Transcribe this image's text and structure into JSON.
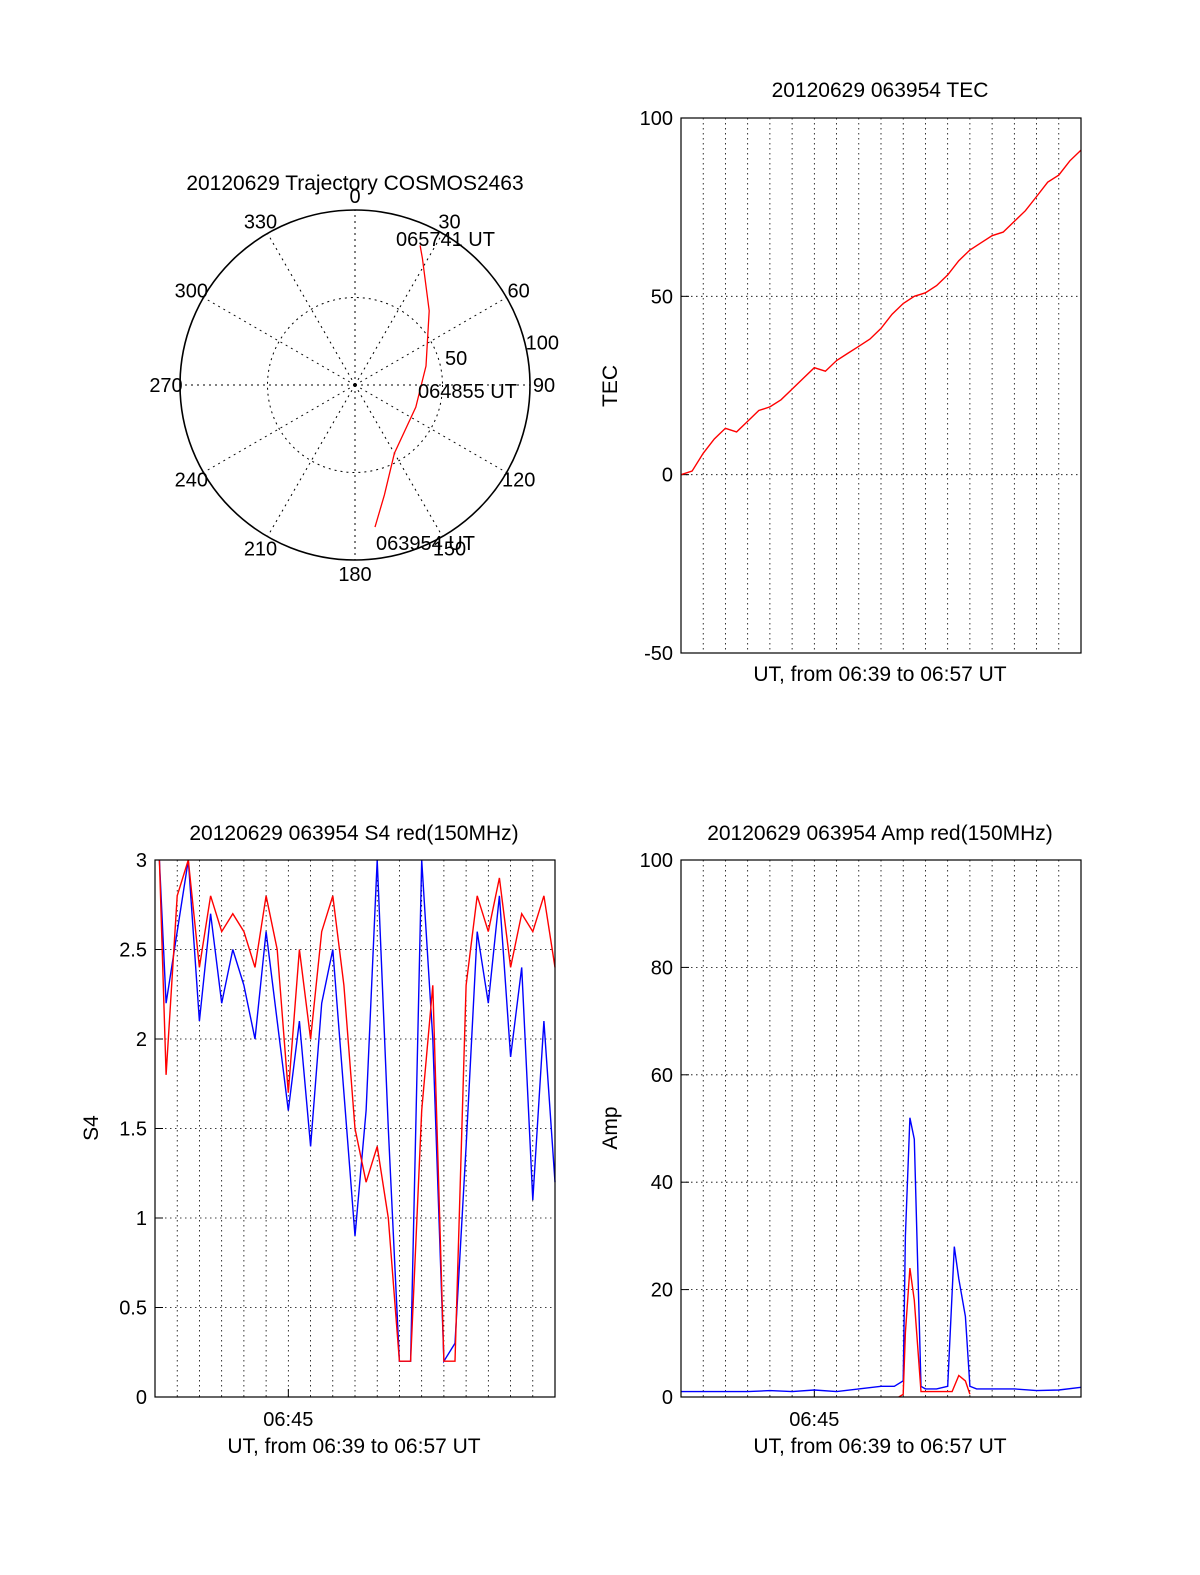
{
  "chart_data": [
    {
      "type": "polar",
      "title": "20120629 Trajectory COSMOS2463",
      "angle_labels": [
        "0",
        "30",
        "60",
        "90",
        "120",
        "150",
        "180",
        "210",
        "240",
        "270",
        "300",
        "330"
      ],
      "radius_labels": [
        "50",
        "100"
      ],
      "rlim": [
        0,
        100
      ],
      "grid": true,
      "series": [
        {
          "color": "#ff0000",
          "points": [
            {
              "az": 172,
              "el_r": 82
            },
            {
              "az": 165,
              "el_r": 65
            },
            {
              "az": 150,
              "el_r": 45
            },
            {
              "az": 110,
              "el_r": 37
            },
            {
              "az": 75,
              "el_r": 42
            },
            {
              "az": 45,
              "el_r": 60
            },
            {
              "az": 28,
              "el_r": 82
            },
            {
              "az": 25,
              "el_r": 88
            }
          ]
        }
      ],
      "annotations": [
        "065741 UT",
        "064855 UT",
        "063954 UT"
      ]
    },
    {
      "type": "line",
      "title": "20120629 063954 TEC",
      "xlabel": "UT, from 06:39 to 06:57 UT",
      "ylabel": "TEC",
      "x_unit": "minutes",
      "xlim": [
        0,
        18
      ],
      "ylim": [
        -50,
        100
      ],
      "yticks": [
        "100",
        "50",
        "0",
        "-50"
      ],
      "grid": true,
      "series": [
        {
          "color": "#ff0000",
          "x": [
            0,
            0.5,
            1,
            1.5,
            2,
            2.5,
            3,
            3.5,
            4,
            4.5,
            5,
            5.5,
            6,
            6.5,
            7,
            7.5,
            8,
            8.5,
            9,
            9.5,
            10,
            10.5,
            11,
            11.5,
            12,
            12.5,
            13,
            13.5,
            14,
            14.5,
            15,
            15.5,
            16,
            16.5,
            17,
            17.5,
            18
          ],
          "y": [
            0,
            1,
            6,
            10,
            13,
            12,
            15,
            18,
            19,
            21,
            24,
            27,
            30,
            29,
            32,
            34,
            36,
            38,
            41,
            45,
            48,
            50,
            51,
            53,
            56,
            60,
            63,
            65,
            67,
            68,
            71,
            74,
            78,
            82,
            84,
            88,
            91
          ]
        }
      ]
    },
    {
      "type": "line",
      "title": "20120629 063954 S4 red(150MHz)",
      "xlabel": "UT, from 06:39 to 06:57 UT",
      "ylabel": "S4",
      "x_unit": "minutes",
      "xlim": [
        0,
        18
      ],
      "ylim": [
        0,
        3
      ],
      "yticks": [
        "3",
        "2.5",
        "2",
        "1.5",
        "1",
        "0.5",
        "0"
      ],
      "xticks": [
        "06:45"
      ],
      "grid": true,
      "series": [
        {
          "color": "#0000ff",
          "x": [
            0.2,
            0.5,
            1,
            1.5,
            2,
            2.5,
            3,
            3.5,
            4,
            4.5,
            5,
            5.5,
            6,
            6.5,
            7,
            7.5,
            8,
            8.5,
            9,
            9.5,
            10,
            10.5,
            11,
            11.5,
            12,
            12.5,
            13,
            13.5,
            14,
            14.5,
            15,
            15.5,
            16,
            16.5,
            17,
            17.5,
            18
          ],
          "y": [
            3,
            2.2,
            2.6,
            3,
            2.1,
            2.7,
            2.2,
            2.5,
            2.3,
            2.0,
            2.6,
            2.1,
            1.6,
            2.1,
            1.4,
            2.2,
            2.5,
            1.7,
            0.9,
            1.6,
            3.0,
            1.5,
            0.2,
            0.2,
            3.0,
            2.0,
            0.2,
            0.3,
            1.4,
            2.6,
            2.2,
            2.8,
            1.9,
            2.4,
            1.1,
            2.1,
            1.2
          ]
        },
        {
          "color": "#ff0000",
          "x": [
            0.2,
            0.5,
            1,
            1.5,
            2,
            2.5,
            3,
            3.5,
            4,
            4.5,
            5,
            5.5,
            6,
            6.5,
            7,
            7.5,
            8,
            8.5,
            9,
            9.5,
            10,
            10.5,
            11,
            11.5,
            12,
            12.5,
            13,
            13.5,
            14,
            14.5,
            15,
            15.5,
            16,
            16.5,
            17,
            17.5,
            18
          ],
          "y": [
            3,
            1.8,
            2.8,
            3,
            2.4,
            2.8,
            2.6,
            2.7,
            2.6,
            2.4,
            2.8,
            2.5,
            1.7,
            2.5,
            2.0,
            2.6,
            2.8,
            2.3,
            1.5,
            1.2,
            1.4,
            1.0,
            0.2,
            0.2,
            1.6,
            2.3,
            0.2,
            0.2,
            2.3,
            2.8,
            2.6,
            2.9,
            2.4,
            2.7,
            2.6,
            2.8,
            2.4
          ]
        }
      ]
    },
    {
      "type": "line",
      "title": "20120629 063954 Amp red(150MHz)",
      "xlabel": "UT, from 06:39 to 06:57 UT",
      "ylabel": "Amp",
      "x_unit": "minutes",
      "xlim": [
        0,
        18
      ],
      "ylim": [
        0,
        100
      ],
      "yticks": [
        "100",
        "80",
        "60",
        "40",
        "20",
        "0"
      ],
      "xticks": [
        "06:45"
      ],
      "grid": true,
      "series": [
        {
          "color": "#0000ff",
          "x": [
            0,
            1,
            2,
            3,
            4,
            5,
            6,
            7,
            8,
            9,
            9.6,
            10.0,
            10.1,
            10.3,
            10.5,
            10.8,
            11,
            11.5,
            12,
            12.3,
            12.5,
            12.8,
            13,
            13.3,
            14,
            15,
            16,
            17,
            18
          ],
          "y": [
            1,
            1,
            1,
            1,
            1.2,
            1,
            1.3,
            1,
            1.5,
            2,
            2,
            3,
            30,
            52,
            48,
            2,
            1.5,
            1.5,
            2,
            28,
            22,
            15,
            2,
            1.5,
            1.5,
            1.5,
            1.2,
            1.3,
            1.8
          ]
        },
        {
          "color": "#ff0000",
          "x": [
            9.8,
            10.0,
            10.1,
            10.3,
            10.5,
            10.8,
            12.2,
            12.5,
            12.8,
            13.0
          ],
          "y": [
            0,
            0.5,
            12,
            24,
            18,
            1,
            1,
            4,
            3,
            0.5
          ]
        }
      ]
    }
  ]
}
